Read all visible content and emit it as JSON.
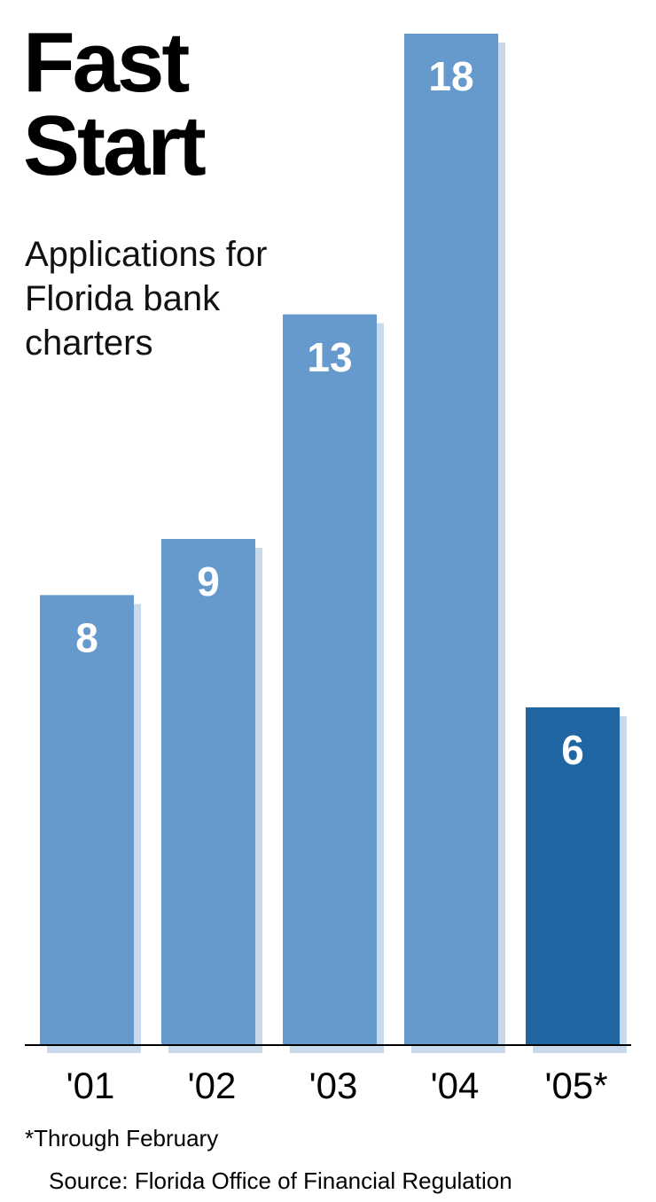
{
  "chart_data": {
    "type": "bar",
    "title": "Fast Start",
    "subtitle": "Applications for Florida bank charters",
    "categories": [
      "'01",
      "'02",
      "'03",
      "'04",
      "'05*"
    ],
    "values": [
      8,
      9,
      13,
      18,
      6
    ],
    "colors": [
      "#6699cc",
      "#6699cc",
      "#6699cc",
      "#6699cc",
      "#1f66a3"
    ],
    "footnote": "*Through February",
    "source": "Source: Florida Office of Financial Regulation"
  }
}
